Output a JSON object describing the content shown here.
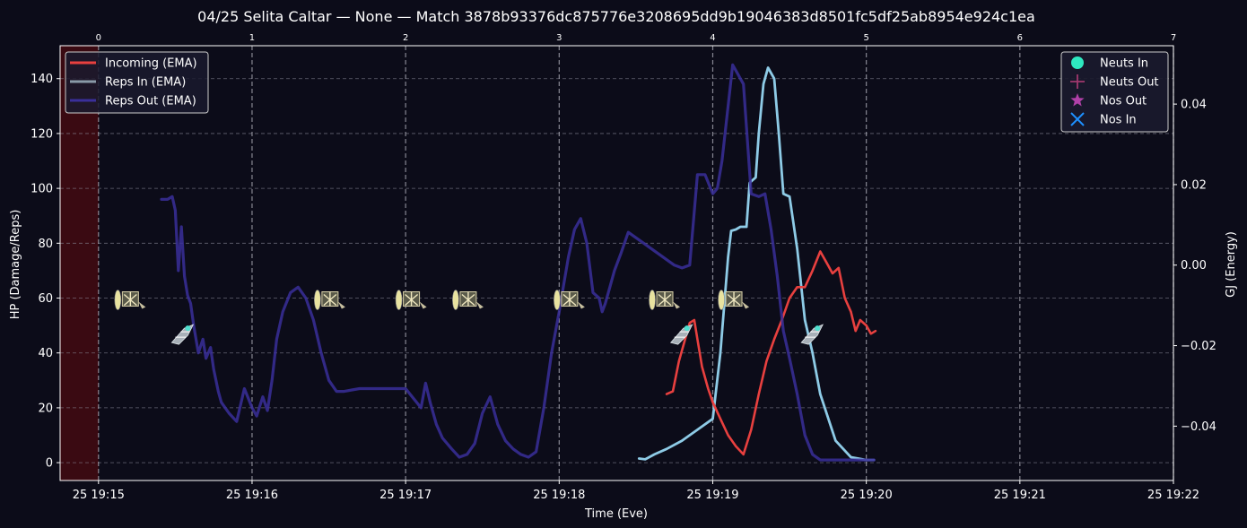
{
  "chart_data": {
    "type": "line",
    "title": "04/25 Selita Caltar — None — Match 3878b93376dc875776e3208695dd9b19046383d8501fc5df25ab8954e924c1ea",
    "xlabel": "Time (Eve)",
    "ylabel": "HP (Damage/Reps)",
    "y2label": "GJ (Energy)",
    "x_ticks": [
      "25 19:15",
      "25 19:16",
      "25 19:17",
      "25 19:18",
      "25 19:19",
      "25 19:20",
      "25 19:21",
      "25 19:22"
    ],
    "x_tick_minutes": [
      0,
      1,
      2,
      3,
      4,
      5,
      6,
      7
    ],
    "top_ticks": [
      "0",
      "1",
      "2",
      "3",
      "4",
      "5",
      "6",
      "7"
    ],
    "xlim_minutes": [
      -0.25,
      7.0
    ],
    "ylim": [
      -6.5,
      152
    ],
    "y_ticks": [
      0,
      20,
      40,
      60,
      80,
      100,
      120,
      140
    ],
    "y2lim": [
      -0.0535,
      0.0545
    ],
    "y2_ticks": [
      0.04,
      0.02,
      0.0,
      -0.02,
      -0.04
    ],
    "y2_tick_labels": [
      "0.04",
      "0.02",
      "0.00",
      "−0.02",
      "−0.04"
    ],
    "grid": true,
    "shaded_region_minutes": [
      -0.25,
      0.0
    ],
    "legend_left_position": "top-left",
    "legend_right_position": "top-right",
    "colors": {
      "background": "#0c0c19",
      "incoming": "#e8403f",
      "reps_in": "#8ecbe6",
      "reps_out": "#3a2f9a",
      "neuts_in": "#2ee8c0",
      "neuts_out": "#a0386e",
      "nos_out": "#b040a8",
      "nos_in": "#1e90ff",
      "shaded": "#3a0a12"
    },
    "series": [
      {
        "name": "Incoming (EMA)",
        "x": [
          3.7,
          3.74,
          3.78,
          3.82,
          3.85,
          3.88,
          3.9,
          3.93,
          3.97,
          4.0,
          4.05,
          4.1,
          4.15,
          4.2,
          4.25,
          4.3,
          4.35,
          4.4,
          4.45,
          4.5,
          4.55,
          4.6,
          4.65,
          4.7,
          4.74,
          4.78,
          4.82,
          4.86,
          4.9,
          4.93,
          4.96,
          5.0,
          5.03,
          5.06
        ],
        "y": [
          25,
          26,
          37,
          45,
          51,
          52,
          45,
          35,
          27,
          22,
          16,
          10,
          6,
          3,
          12,
          25,
          37,
          45,
          52,
          60,
          64,
          64,
          70,
          77,
          73,
          69,
          71,
          60,
          55,
          48,
          52,
          50,
          47,
          48
        ]
      },
      {
        "name": "Reps In (EMA)",
        "x": [
          3.52,
          3.56,
          3.62,
          3.7,
          3.8,
          3.9,
          4.0,
          4.05,
          4.1,
          4.12,
          4.15,
          4.18,
          4.2,
          4.22,
          4.24,
          4.26,
          4.28,
          4.3,
          4.33,
          4.36,
          4.4,
          4.43,
          4.46,
          4.5,
          4.55,
          4.6,
          4.65,
          4.7,
          4.8,
          4.9,
          5.0,
          5.05
        ],
        "y": [
          1.5,
          1.2,
          3,
          5,
          8,
          12,
          16,
          40,
          75,
          84.5,
          85,
          86,
          86,
          86,
          102,
          103,
          104,
          120,
          138,
          144,
          140,
          120,
          98,
          97,
          78,
          52,
          40,
          25,
          8,
          2,
          1,
          1
        ]
      },
      {
        "name": "Reps Out (EMA)",
        "x": [
          0.41,
          0.45,
          0.48,
          0.5,
          0.52,
          0.54,
          0.56,
          0.58,
          0.6,
          0.62,
          0.65,
          0.68,
          0.7,
          0.73,
          0.75,
          0.78,
          0.8,
          0.85,
          0.9,
          0.95,
          1.0,
          1.03,
          1.07,
          1.1,
          1.13,
          1.16,
          1.2,
          1.25,
          1.3,
          1.35,
          1.4,
          1.45,
          1.5,
          1.55,
          1.6,
          1.65,
          1.7,
          1.8,
          1.9,
          2.0,
          2.1,
          2.13,
          2.16,
          2.2,
          2.24,
          2.3,
          2.35,
          2.4,
          2.45,
          2.5,
          2.55,
          2.6,
          2.65,
          2.7,
          2.75,
          2.8,
          2.85,
          2.9,
          2.95,
          3.0,
          3.03,
          3.06,
          3.1,
          3.14,
          3.18,
          3.22,
          3.26,
          3.28,
          3.3,
          3.33,
          3.36,
          3.4,
          3.45,
          3.5,
          3.55,
          3.6,
          3.65,
          3.7,
          3.75,
          3.8,
          3.85,
          3.9,
          3.95,
          4.0,
          4.03,
          4.06,
          4.1,
          4.13,
          4.16,
          4.2,
          4.25,
          4.3,
          4.34,
          4.38,
          4.42,
          4.46,
          4.5,
          4.55,
          4.6,
          4.65,
          4.7,
          4.8,
          4.9,
          5.0,
          5.05
        ],
        "y": [
          96,
          96,
          97,
          92,
          70,
          86,
          68,
          61,
          58,
          50,
          40,
          45,
          38,
          42,
          34,
          26,
          22,
          18,
          15,
          27,
          20,
          17,
          24,
          19,
          30,
          45,
          55,
          62,
          64,
          60,
          52,
          40,
          30,
          26,
          26,
          26.5,
          27,
          27,
          27,
          27,
          20,
          29,
          22,
          14,
          9,
          5,
          2,
          3,
          7,
          18,
          24,
          14,
          8,
          5,
          3,
          2,
          4,
          20,
          40,
          55,
          65,
          75,
          85,
          89,
          80,
          62,
          60,
          55,
          58,
          64,
          70,
          76,
          84,
          82,
          80,
          78,
          76,
          74,
          72,
          71,
          72,
          105,
          105,
          98,
          100,
          110,
          130,
          145,
          142,
          138,
          98,
          97,
          98,
          85,
          68,
          48,
          38,
          25,
          10,
          3,
          1,
          1,
          1,
          1,
          1
        ]
      }
    ],
    "markers": [
      {
        "name": "Neuts In"
      },
      {
        "name": "Neuts Out"
      },
      {
        "name": "Nos Out"
      },
      {
        "name": "Nos In"
      }
    ],
    "ship_icons": {
      "high_y": 60,
      "high_x": [
        0.12,
        1.42,
        1.95,
        2.32,
        2.98,
        3.6,
        4.05
      ],
      "low_y": 49,
      "low_x": [
        0.5,
        3.75,
        4.6
      ]
    }
  }
}
